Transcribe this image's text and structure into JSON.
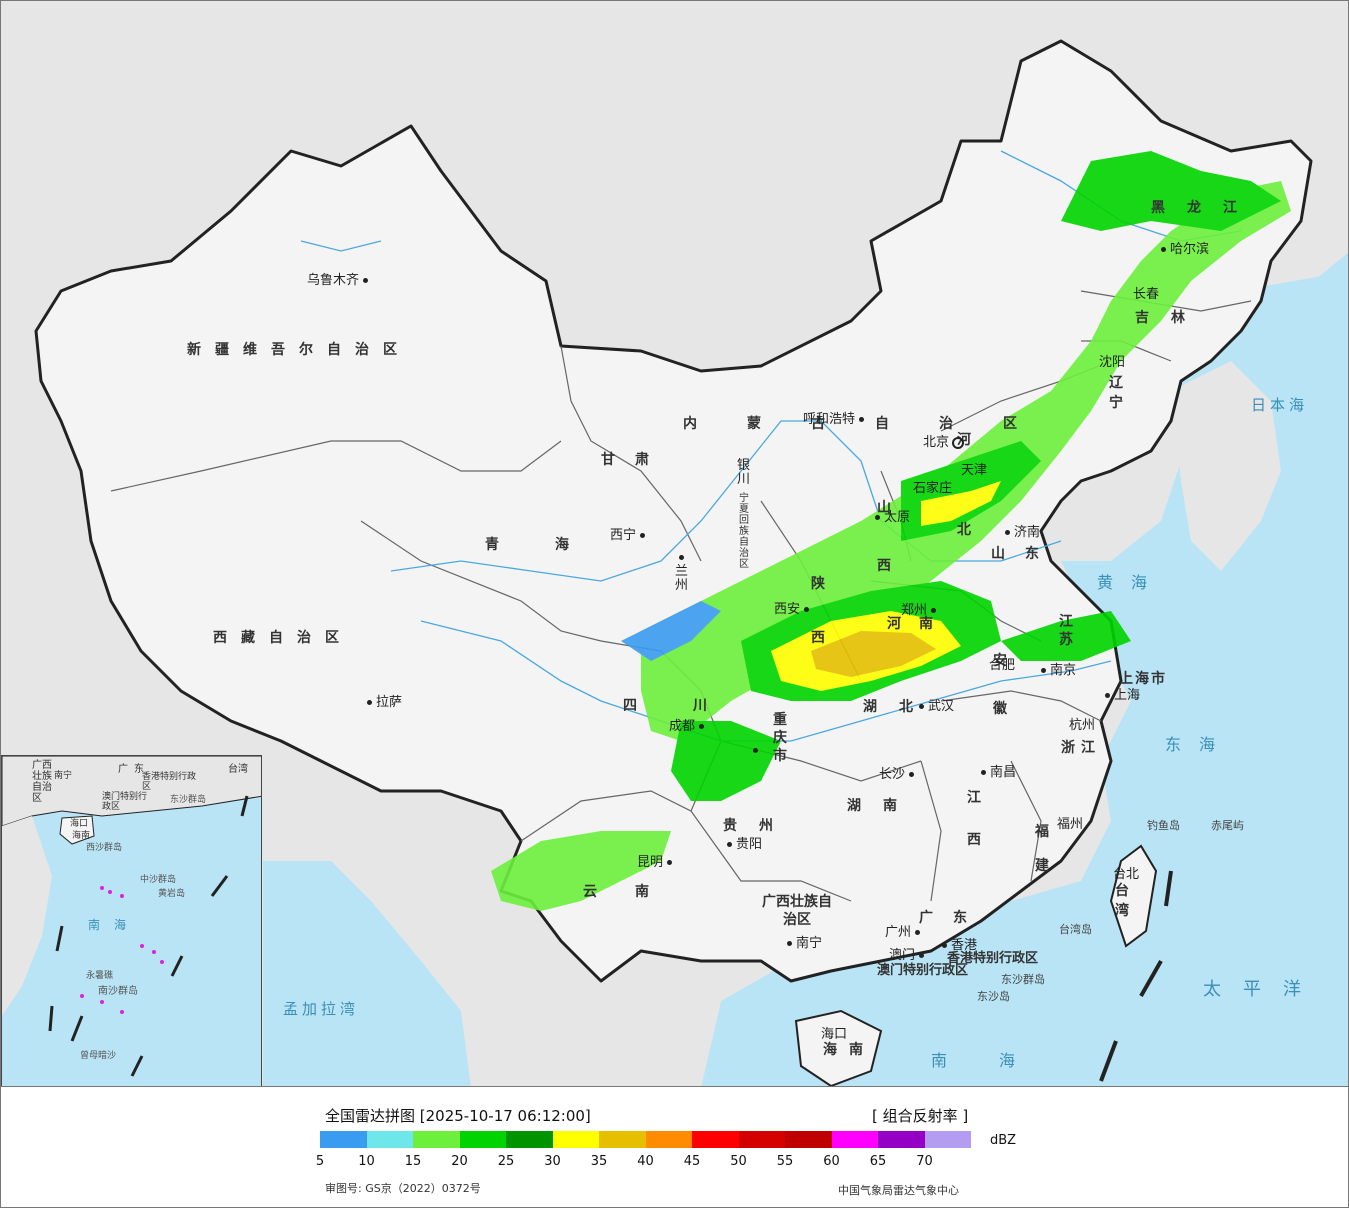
{
  "title": "全国雷达拼图 [2025-10-17 06:12:00]",
  "product": "[ 组合反射率 ]",
  "unit": "dBZ",
  "approval_number": "审图号: GS京（2022）0372号",
  "agency": "中国气象局雷达气象中心",
  "legend": {
    "colors": [
      "#3a9cf0",
      "#6ee6ea",
      "#6cf03c",
      "#00d400",
      "#009400",
      "#ffff00",
      "#e6c000",
      "#ff8c00",
      "#ff0000",
      "#d40000",
      "#c00000",
      "#ff00ff",
      "#9400c4",
      "#b49cf0"
    ],
    "ticks": [
      "5",
      "10",
      "15",
      "20",
      "25",
      "30",
      "35",
      "40",
      "45",
      "50",
      "55",
      "60",
      "65",
      "70"
    ]
  },
  "regions": [
    {
      "name": "新疆维吾尔自治区"
    },
    {
      "name": "西藏自治区"
    },
    {
      "name": "青海"
    },
    {
      "name": "甘肃"
    },
    {
      "name": "四川"
    },
    {
      "name": "云南"
    },
    {
      "name": "贵州"
    },
    {
      "name": "广西壮族自治区"
    },
    {
      "name": "广东"
    },
    {
      "name": "湖南"
    },
    {
      "name": "湖北"
    },
    {
      "name": "江西"
    },
    {
      "name": "福建"
    },
    {
      "name": "浙江"
    },
    {
      "name": "安徽"
    },
    {
      "name": "江苏"
    },
    {
      "name": "上海市"
    },
    {
      "name": "山东"
    },
    {
      "name": "河南"
    },
    {
      "name": "河北"
    },
    {
      "name": "山西"
    },
    {
      "name": "陕西"
    },
    {
      "name": "宁夏回族自治区"
    },
    {
      "name": "内蒙古自治区"
    },
    {
      "name": "黑龙江"
    },
    {
      "name": "吉林"
    },
    {
      "name": "辽宁"
    },
    {
      "name": "重庆市"
    },
    {
      "name": "台湾"
    },
    {
      "name": "海南"
    },
    {
      "name": "香港特别行政区"
    },
    {
      "name": "澳门特别行政区"
    }
  ],
  "cities": [
    "乌鲁木齐",
    "拉萨",
    "西宁",
    "兰州",
    "银川",
    "呼和浩特",
    "北京",
    "天津",
    "石家庄",
    "太原",
    "济南",
    "郑州",
    "西安",
    "成都",
    "重庆",
    "贵阳",
    "昆明",
    "南宁",
    "广州",
    "香港",
    "澳门",
    "海口",
    "长沙",
    "武汉",
    "南昌",
    "合肥",
    "南京",
    "上海",
    "杭州",
    "福州",
    "台北",
    "沈阳",
    "长春",
    "哈尔滨"
  ],
  "seas": [
    "日本海",
    "黄海",
    "东海",
    "太平洋",
    "南海",
    "孟加拉湾"
  ],
  "islands": [
    "钓鱼岛",
    "赤尾屿",
    "台湾岛",
    "东沙群岛",
    "东沙岛"
  ],
  "inset": {
    "labels": [
      "广西壮族自治区",
      "南宁",
      "广东",
      "香港特别行政区",
      "澳门特别行政区",
      "海口",
      "海南",
      "东沙群岛",
      "西沙群岛",
      "中沙群岛",
      "黄岩岛",
      "南海",
      "永暑礁",
      "南沙群岛",
      "曾母暗沙",
      "台湾"
    ]
  }
}
